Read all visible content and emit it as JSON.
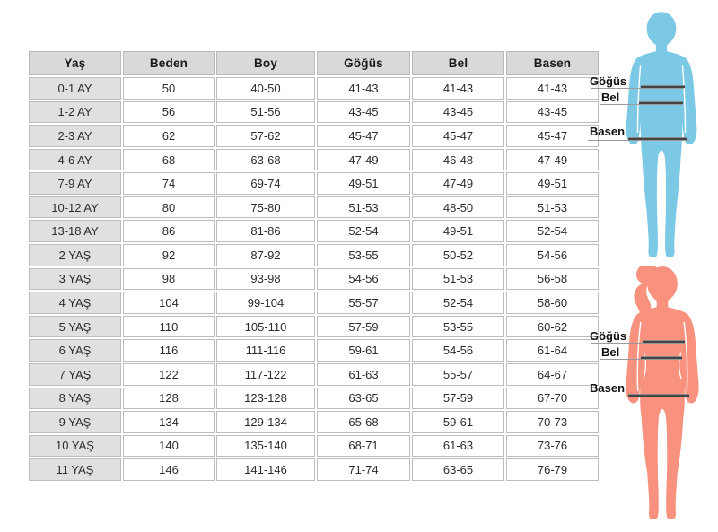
{
  "table": {
    "columns": [
      "Yaş",
      "Beden",
      "Boy",
      "Göğüs",
      "Bel",
      "Basen"
    ],
    "rows": [
      [
        "0-1 AY",
        "50",
        "40-50",
        "41-43",
        "41-43",
        "41-43"
      ],
      [
        "1-2 AY",
        "56",
        "51-56",
        "43-45",
        "43-45",
        "43-45"
      ],
      [
        "2-3 AY",
        "62",
        "57-62",
        "45-47",
        "45-47",
        "45-47"
      ],
      [
        "4-6 AY",
        "68",
        "63-68",
        "47-49",
        "46-48",
        "47-49"
      ],
      [
        "7-9 AY",
        "74",
        "69-74",
        "49-51",
        "47-49",
        "49-51"
      ],
      [
        "10-12 AY",
        "80",
        "75-80",
        "51-53",
        "48-50",
        "51-53"
      ],
      [
        "13-18 AY",
        "86",
        "81-86",
        "52-54",
        "49-51",
        "52-54"
      ],
      [
        "2 YAŞ",
        "92",
        "87-92",
        "53-55",
        "50-52",
        "54-56"
      ],
      [
        "3 YAŞ",
        "98",
        "93-98",
        "54-56",
        "51-53",
        "56-58"
      ],
      [
        "4 YAŞ",
        "104",
        "99-104",
        "55-57",
        "52-54",
        "58-60"
      ],
      [
        "5 YAŞ",
        "110",
        "105-110",
        "57-59",
        "53-55",
        "60-62"
      ],
      [
        "6 YAŞ",
        "116",
        "111-116",
        "59-61",
        "54-56",
        "61-64"
      ],
      [
        "7 YAŞ",
        "122",
        "117-122",
        "61-63",
        "55-57",
        "64-67"
      ],
      [
        "8 YAŞ",
        "128",
        "123-128",
        "63-65",
        "57-59",
        "67-70"
      ],
      [
        "9 YAŞ",
        "134",
        "129-134",
        "65-68",
        "59-61",
        "70-73"
      ],
      [
        "10 YAŞ",
        "140",
        "135-140",
        "68-71",
        "61-63",
        "73-76"
      ],
      [
        "11 YAŞ",
        "146",
        "141-146",
        "71-74",
        "63-65",
        "76-79"
      ]
    ]
  },
  "figures": {
    "boy": {
      "color": "#7cc9e6",
      "labels": {
        "chest": "Göğüs",
        "waist": "Bel",
        "hip": "Basen"
      }
    },
    "girl": {
      "color": "#f8917d",
      "labels": {
        "chest": "Göğüs",
        "waist": "Bel",
        "hip": "Basen"
      }
    }
  },
  "colors": {
    "header_bg": "#d9d9d9",
    "age_col_bg": "#e0e0e0",
    "cell_border": "#bdbdbd",
    "measure_line": "#444444",
    "leader_line": "#9a9a9a"
  }
}
